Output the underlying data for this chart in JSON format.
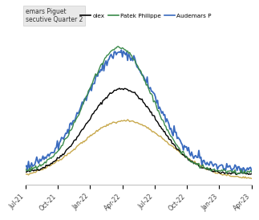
{
  "x_ticks": [
    "Jul-21",
    "Oct-21",
    "Jan-22",
    "Apr-22",
    "Jul-22",
    "Oct-22",
    "Jan-23",
    "Apr-23"
  ],
  "colors": {
    "rolex": "#000000",
    "patek": "#3a8a4a",
    "audemars": "#3a6bbf",
    "other": "#c8a84b"
  },
  "background_color": "#ffffff",
  "line_width": 1.0,
  "tooltip_text": "emars Piguet\nsecutive Quarter 2",
  "legend_items": [
    {
      "label": "olex",
      "color": "#000000"
    },
    {
      "label": "Patek Philippe",
      "color": "#3a8a4a"
    },
    {
      "label": "Audemars P",
      "color": "#3a6bbf"
    }
  ]
}
